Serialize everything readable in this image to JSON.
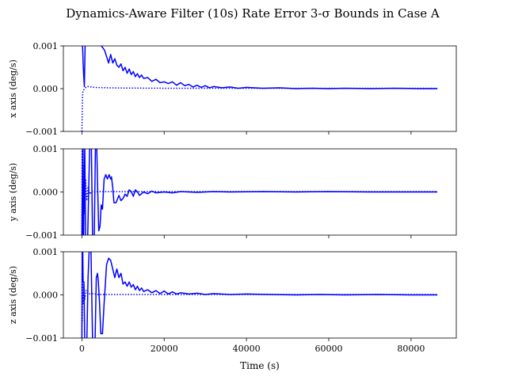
{
  "title": "Dynamics-Aware Filter (10s) Rate Error 3-σ Bounds in Case A",
  "xlabel": "Time (s)",
  "chart_data": {
    "type": "line",
    "title": "Dynamics-Aware Filter (10s) Rate Error 3-σ Bounds in Case A",
    "xlabel": "Time (s)",
    "xlim": [
      -4500,
      91000
    ],
    "x_ticks": [
      0,
      20000,
      40000,
      60000,
      80000
    ],
    "x_tick_labels": [
      "0",
      "20000",
      "40000",
      "60000",
      "80000"
    ],
    "line_color": "#0000ff",
    "grid": false,
    "panels": [
      {
        "ylabel": "x axis (deg/s)",
        "ylim": [
          -0.001,
          0.001
        ],
        "y_ticks": [
          -0.001,
          0.0,
          0.001
        ],
        "y_tick_labels": [
          "−0.001",
          "0.000",
          "0.001"
        ],
        "series": [
          {
            "style": "solid",
            "points": [
              [
                100,
                0.0011
              ],
              [
                200,
                0.0009
              ],
              [
                300,
                0.0006
              ],
              [
                450,
                0.0003
              ],
              [
                600,
                5e-05
              ],
              [
                800,
                0.0011
              ],
              [
                2000,
                0.0011
              ],
              [
                4000,
                0.0011
              ],
              [
                5500,
                0.0009
              ],
              [
                6500,
                0.0006
              ],
              [
                7000,
                0.0008
              ],
              [
                7500,
                0.0006
              ],
              [
                8000,
                0.0007
              ],
              [
                8500,
                0.00055
              ],
              [
                9000,
                0.0005
              ],
              [
                9500,
                0.00058
              ],
              [
                10000,
                0.00042
              ],
              [
                10500,
                0.0005
              ],
              [
                11000,
                0.00036
              ],
              [
                11500,
                0.00046
              ],
              [
                12000,
                0.00033
              ],
              [
                12500,
                0.0004
              ],
              [
                13000,
                0.00028
              ],
              [
                13500,
                0.00035
              ],
              [
                14000,
                0.00026
              ],
              [
                14500,
                0.00032
              ],
              [
                15000,
                0.00024
              ],
              [
                16000,
                0.00026
              ],
              [
                17000,
                0.00017
              ],
              [
                18000,
                0.00022
              ],
              [
                19000,
                0.00014
              ],
              [
                20000,
                0.00016
              ],
              [
                21000,
                0.00012
              ],
              [
                22000,
                0.00016
              ],
              [
                23000,
                8e-05
              ],
              [
                24000,
                0.00014
              ],
              [
                25000,
                7e-05
              ],
              [
                26000,
                0.0001
              ],
              [
                27000,
                4e-05
              ],
              [
                28000,
                8e-05
              ],
              [
                29000,
                3e-05
              ],
              [
                30000,
                7e-05
              ],
              [
                31000,
                2e-05
              ],
              [
                32000,
                5e-05
              ],
              [
                34000,
                2e-05
              ],
              [
                36000,
                4e-05
              ],
              [
                38000,
                1e-05
              ],
              [
                40000,
                3e-05
              ],
              [
                44000,
                1e-05
              ],
              [
                48000,
                2e-05
              ],
              [
                52000,
                0.0
              ],
              [
                56000,
                1e-05
              ],
              [
                60000,
                0.0
              ],
              [
                64000,
                1e-05
              ],
              [
                70000,
                0.0
              ],
              [
                76000,
                1e-05
              ],
              [
                82000,
                0.0
              ],
              [
                86400,
                0.0
              ]
            ]
          },
          {
            "style": "dotted",
            "points": [
              [
                0,
                -0.001
              ],
              [
                50,
                -0.0008
              ],
              [
                100,
                -0.0005
              ],
              [
                150,
                -0.0002
              ],
              [
                250,
                -5e-05
              ],
              [
                600,
                -1e-05
              ],
              [
                800,
                1e-05
              ],
              [
                1000,
                4e-05
              ],
              [
                1500,
                5e-05
              ],
              [
                3000,
                3e-05
              ],
              [
                6000,
                2e-05
              ],
              [
                10000,
                1.5e-05
              ],
              [
                20000,
                1e-05
              ],
              [
                40000,
                1e-05
              ],
              [
                86400,
                1e-05
              ]
            ]
          }
        ]
      },
      {
        "ylabel": "y axis (deg/s)",
        "ylim": [
          -0.001,
          0.001
        ],
        "y_ticks": [
          -0.001,
          0.0,
          0.001
        ],
        "y_tick_labels": [
          "−0.001",
          "0.000",
          "0.001"
        ],
        "series": [
          {
            "style": "solid",
            "points": [
              [
                0,
                -0.0011
              ],
              [
                200,
                0.0011
              ],
              [
                400,
                -0.0011
              ],
              [
                700,
                0.0011
              ],
              [
                900,
                -0.0011
              ],
              [
                1400,
                -0.0011
              ],
              [
                1600,
                -0.0002
              ],
              [
                1900,
                0.0011
              ],
              [
                2300,
                0.0011
              ],
              [
                2600,
                -0.0011
              ],
              [
                3000,
                -0.0011
              ],
              [
                3300,
                0.0011
              ],
              [
                3600,
                0.0011
              ],
              [
                3800,
                0.0002
              ],
              [
                4100,
                -0.0009
              ],
              [
                4400,
                -0.0008
              ],
              [
                4700,
                -0.0003
              ],
              [
                5000,
                -0.0004
              ],
              [
                5400,
                0.0003
              ],
              [
                5800,
                0.0004
              ],
              [
                6200,
                0.0003
              ],
              [
                6600,
                0.0004
              ],
              [
                7000,
                0.0003
              ],
              [
                7200,
                0.00035
              ],
              [
                7500,
                0.0001
              ],
              [
                7800,
                -0.00025
              ],
              [
                8300,
                -0.00025
              ],
              [
                9000,
                -8e-05
              ],
              [
                9500,
                -0.0002
              ],
              [
                10000,
                -0.00015
              ],
              [
                10500,
                -5e-05
              ],
              [
                11000,
                -0.0001
              ],
              [
                11500,
                5e-05
              ],
              [
                12000,
                1e-05
              ],
              [
                12500,
                -0.0001
              ],
              [
                13000,
                5e-05
              ],
              [
                13500,
                0.0
              ],
              [
                14000,
                -8e-05
              ],
              [
                15000,
                0.0
              ],
              [
                16000,
                -4e-05
              ],
              [
                17000,
                2e-05
              ],
              [
                18000,
                -2e-05
              ],
              [
                20000,
                0.0
              ],
              [
                22000,
                -2e-05
              ],
              [
                24000,
                1e-05
              ],
              [
                28000,
                -1e-05
              ],
              [
                32000,
                1e-05
              ],
              [
                36000,
                0.0
              ],
              [
                44000,
                1e-05
              ],
              [
                52000,
                0.0
              ],
              [
                60000,
                1e-05
              ],
              [
                70000,
                0.0
              ],
              [
                80000,
                0.0
              ],
              [
                86400,
                0.0
              ]
            ]
          },
          {
            "style": "dotted",
            "points": [
              [
                0,
                -0.001
              ],
              [
                50,
                0.0011
              ],
              [
                120,
                -0.001
              ],
              [
                180,
                0.0011
              ],
              [
                240,
                -0.001
              ],
              [
                300,
                0.0011
              ],
              [
                380,
                -0.0011
              ],
              [
                500,
                0.0006
              ],
              [
                700,
                -0.0005
              ],
              [
                900,
                0.0003
              ],
              [
                1200,
                -0.0002
              ],
              [
                1500,
                0.0001
              ],
              [
                2000,
                -5e-05
              ],
              [
                2500,
                3e-05
              ],
              [
                3000,
                0.0
              ],
              [
                4000,
                1e-05
              ],
              [
                86400,
                1e-05
              ]
            ]
          }
        ]
      },
      {
        "ylabel": "z axis (deg/s)",
        "ylim": [
          -0.001,
          0.001
        ],
        "y_ticks": [
          -0.001,
          0.0,
          0.001
        ],
        "y_tick_labels": [
          "−0.001",
          "0.000",
          "0.001"
        ],
        "series": [
          {
            "style": "solid",
            "points": [
              [
                0,
                -0.0011
              ],
              [
                100,
                0.0011
              ],
              [
                200,
                0.0011
              ],
              [
                300,
                0.0003
              ],
              [
                500,
                0.0003
              ],
              [
                700,
                -0.0011
              ],
              [
                1200,
                -0.0011
              ],
              [
                1500,
                0.0004
              ],
              [
                1800,
                0.0011
              ],
              [
                2200,
                0.0011
              ],
              [
                2600,
                -0.0011
              ],
              [
                3200,
                -0.0011
              ],
              [
                3500,
                0.0004
              ],
              [
                3800,
                0.0005
              ],
              [
                4000,
                0.0003
              ],
              [
                4300,
                -0.0002
              ],
              [
                4600,
                -0.0009
              ],
              [
                5000,
                -0.0009
              ],
              [
                5400,
                -0.0002
              ],
              [
                6000,
                0.0007
              ],
              [
                6500,
                0.00085
              ],
              [
                7000,
                0.0008
              ],
              [
                7500,
                0.0006
              ],
              [
                8000,
                0.0004
              ],
              [
                8500,
                0.0006
              ],
              [
                9000,
                0.0004
              ],
              [
                9500,
                0.0005
              ],
              [
                10000,
                0.00025
              ],
              [
                10500,
                0.0003
              ],
              [
                11000,
                0.0002
              ],
              [
                11500,
                0.0003
              ],
              [
                12000,
                0.00018
              ],
              [
                12500,
                0.00024
              ],
              [
                13000,
                0.00012
              ],
              [
                13500,
                0.0002
              ],
              [
                14000,
                0.0001
              ],
              [
                14500,
                0.00016
              ],
              [
                15000,
                8e-05
              ],
              [
                16000,
                0.00012
              ],
              [
                17000,
                5e-05
              ],
              [
                18000,
                0.0001
              ],
              [
                19000,
                3e-05
              ],
              [
                20000,
                9e-05
              ],
              [
                21000,
                2e-05
              ],
              [
                22000,
                7e-05
              ],
              [
                23000,
                2e-05
              ],
              [
                24000,
                5e-05
              ],
              [
                26000,
                2e-05
              ],
              [
                28000,
                4e-05
              ],
              [
                30000,
                1e-05
              ],
              [
                32000,
                3e-05
              ],
              [
                36000,
                1e-05
              ],
              [
                40000,
                2e-05
              ],
              [
                46000,
                1e-05
              ],
              [
                52000,
                0.0
              ],
              [
                58000,
                1e-05
              ],
              [
                64000,
                0.0
              ],
              [
                72000,
                1e-05
              ],
              [
                80000,
                0.0
              ],
              [
                86400,
                0.0
              ]
            ]
          },
          {
            "style": "dotted",
            "points": [
              [
                0,
                -0.001
              ],
              [
                50,
                0.0011
              ],
              [
                100,
                -0.0006
              ],
              [
                200,
                0.0004
              ],
              [
                300,
                -0.0002
              ],
              [
                500,
                0.0002
              ],
              [
                700,
                -0.0001
              ],
              [
                1000,
                0.0001
              ],
              [
                1500,
                2e-05
              ],
              [
                2500,
                3e-05
              ],
              [
                4000,
                1e-05
              ],
              [
                86400,
                1e-05
              ]
            ]
          }
        ]
      }
    ]
  }
}
